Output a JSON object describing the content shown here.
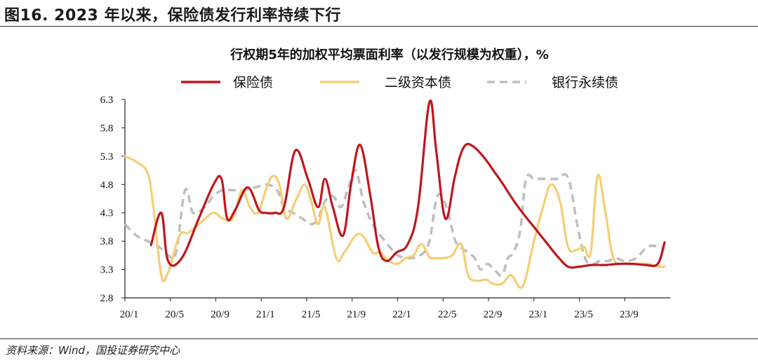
{
  "figure": {
    "title": "图16. 2023 年以来，保险债发行利率持续下行",
    "source": "资料来源：Wind，国投证券研究中心"
  },
  "chart_data": {
    "type": "line",
    "title": "行权期5年的加权平均票面利率（以发行规模为权重），%",
    "xlabel": "",
    "ylabel": "",
    "ylim": [
      2.8,
      6.3
    ],
    "yticks": [
      "6.3",
      "5.8",
      "5.3",
      "4.8",
      "4.3",
      "3.8",
      "3.3",
      "2.8"
    ],
    "ytick_values": [
      6.3,
      5.8,
      5.3,
      4.8,
      4.3,
      3.8,
      3.3,
      2.8
    ],
    "xlim": [
      0,
      48
    ],
    "xticks": [
      "20/1",
      "20/5",
      "20/9",
      "21/1",
      "21/5",
      "21/9",
      "22/1",
      "22/5",
      "22/9",
      "23/1",
      "23/5",
      "23/9"
    ],
    "xtick_values": [
      0,
      4,
      8,
      12,
      16,
      20,
      24,
      28,
      32,
      36,
      40,
      44
    ],
    "legend": [
      "保险债",
      "二级资本债",
      "银行永续债"
    ],
    "legend_position": "top",
    "series": [
      {
        "name": "保险债",
        "color": "#C0161D",
        "style": "solid",
        "x": [
          2.3,
          3.2,
          3.8,
          5.0,
          6.5,
          7.8,
          8.5,
          9.0,
          9.7,
          10.8,
          11.8,
          12.4,
          13.2,
          14.0,
          15.0,
          16.1,
          17.0,
          17.6,
          18.3,
          19.2,
          19.9,
          20.7,
          21.6,
          22.3,
          23.0,
          23.9,
          24.9,
          25.8,
          26.8,
          27.4,
          28.2,
          29.0,
          29.5,
          30.0,
          30.6,
          31.3,
          31.9,
          32.6,
          33.3,
          34.1,
          35.0,
          36.0,
          37.0,
          38.0,
          39.0,
          40.0,
          41.1,
          42.3,
          43.5,
          44.7,
          45.8,
          46.9,
          47.5
        ],
        "values": [
          3.73,
          4.3,
          3.45,
          3.5,
          4.2,
          4.8,
          4.9,
          4.2,
          4.35,
          4.75,
          4.35,
          4.3,
          4.3,
          4.4,
          5.4,
          4.9,
          4.4,
          4.9,
          4.4,
          3.9,
          4.8,
          5.5,
          4.6,
          3.7,
          3.45,
          3.6,
          3.75,
          4.4,
          6.25,
          5.4,
          4.2,
          4.9,
          5.3,
          5.5,
          5.48,
          5.35,
          5.2,
          5.0,
          4.8,
          4.55,
          4.3,
          4.05,
          3.8,
          3.55,
          3.35,
          3.35,
          3.38,
          3.38,
          3.4,
          3.4,
          3.38,
          3.4,
          3.78
        ]
      },
      {
        "name": "二级资本债",
        "color": "#F5CE76",
        "style": "solid",
        "x": [
          0,
          1.0,
          2.0,
          2.5,
          3.2,
          3.8,
          4.8,
          5.6,
          6.8,
          7.8,
          8.6,
          9.5,
          10.3,
          11.0,
          11.7,
          12.4,
          13.0,
          13.6,
          14.2,
          15.0,
          15.8,
          16.4,
          17.0,
          17.6,
          18.6,
          19.3,
          20.3,
          21.0,
          21.8,
          22.5,
          23.2,
          24.0,
          24.7,
          25.4,
          26.1,
          26.8,
          27.4,
          28.0,
          28.8,
          29.6,
          30.2,
          31.0,
          31.8,
          32.4,
          33.2,
          34.0,
          35.0,
          36.0,
          36.8,
          37.5,
          38.3,
          39.0,
          39.8,
          40.4,
          41.0,
          41.6,
          42.3,
          43.0,
          44.0,
          45.0,
          46.0,
          47.0,
          47.5
        ],
        "values": [
          5.3,
          5.2,
          5.0,
          4.4,
          3.2,
          3.25,
          3.9,
          3.95,
          4.15,
          4.3,
          4.2,
          4.2,
          4.7,
          4.4,
          4.3,
          4.7,
          4.95,
          4.8,
          4.2,
          4.5,
          4.8,
          4.5,
          4.1,
          4.4,
          3.5,
          3.6,
          3.9,
          3.88,
          3.6,
          3.6,
          3.45,
          3.4,
          3.5,
          3.55,
          3.75,
          3.52,
          3.5,
          3.5,
          3.55,
          3.75,
          3.2,
          3.1,
          3.12,
          3.05,
          3.05,
          3.2,
          3.0,
          3.8,
          4.4,
          4.8,
          4.5,
          3.7,
          3.65,
          3.7,
          3.6,
          4.95,
          4.3,
          3.5,
          3.4,
          3.4,
          3.4,
          3.35,
          3.35
        ]
      },
      {
        "name": "银行永续债",
        "color": "#BFBFBF",
        "style": "dashed",
        "x": [
          0,
          1.0,
          2.0,
          3.0,
          3.8,
          4.5,
          5.3,
          6.0,
          7.0,
          7.8,
          8.6,
          9.5,
          10.4,
          11.5,
          12.5,
          13.4,
          14.0,
          14.8,
          15.6,
          16.4,
          17.0,
          17.6,
          18.3,
          19.0,
          19.6,
          20.3,
          21.0,
          21.8,
          22.5,
          23.3,
          24.0,
          25.0,
          26.0,
          26.8,
          27.5,
          28.3,
          29.0,
          29.5,
          30.2,
          30.8,
          31.3,
          31.9,
          32.5,
          33.2,
          33.7,
          34.2,
          34.8,
          35.3,
          36.0,
          36.6,
          37.3,
          38.0,
          39.0,
          39.8,
          40.5,
          41.2,
          41.8,
          42.5,
          43.2,
          44.0,
          45.0,
          46.0,
          47.0,
          47.5
        ],
        "values": [
          4.1,
          3.9,
          3.8,
          3.7,
          3.55,
          3.6,
          4.7,
          4.3,
          4.4,
          4.6,
          4.7,
          4.7,
          4.7,
          4.75,
          4.8,
          4.7,
          4.4,
          4.3,
          4.2,
          4.1,
          4.2,
          4.5,
          4.6,
          4.4,
          4.7,
          5.05,
          4.5,
          4.1,
          3.9,
          3.7,
          3.55,
          3.5,
          3.55,
          3.8,
          4.6,
          4.4,
          3.85,
          3.7,
          3.6,
          3.5,
          3.3,
          3.4,
          3.3,
          3.2,
          3.5,
          3.6,
          4.0,
          4.9,
          4.9,
          4.9,
          4.9,
          4.9,
          4.92,
          4.1,
          3.5,
          3.4,
          3.45,
          3.45,
          3.5,
          3.45,
          3.5,
          3.7,
          3.7,
          3.65
        ]
      }
    ]
  }
}
